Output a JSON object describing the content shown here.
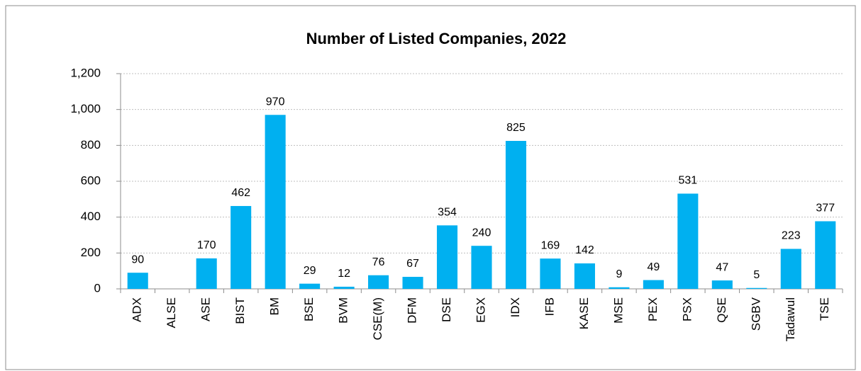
{
  "chart_data": {
    "type": "bar",
    "title": "Number of Listed Companies, 2022",
    "categories": [
      "ADX",
      "ALSE",
      "ASE",
      "BIST",
      "BM",
      "BSE",
      "BVM",
      "CSE(M)",
      "DFM",
      "DSE",
      "EGX",
      "IDX",
      "IFB",
      "KASE",
      "MSE",
      "PEX",
      "PSX",
      "QSE",
      "SGBV",
      "Tadawul",
      "TSE"
    ],
    "values": [
      90,
      null,
      170,
      462,
      970,
      29,
      12,
      76,
      67,
      354,
      240,
      825,
      169,
      142,
      9,
      49,
      531,
      47,
      5,
      223,
      377
    ],
    "color": "#00b0f0",
    "ylim": [
      0,
      1200
    ],
    "yticks": [
      0,
      200,
      400,
      600,
      800,
      {
        "value": 1000,
        "label": "1,000"
      },
      {
        "value": 1200,
        "label": "1,200"
      }
    ],
    "grid": true
  }
}
